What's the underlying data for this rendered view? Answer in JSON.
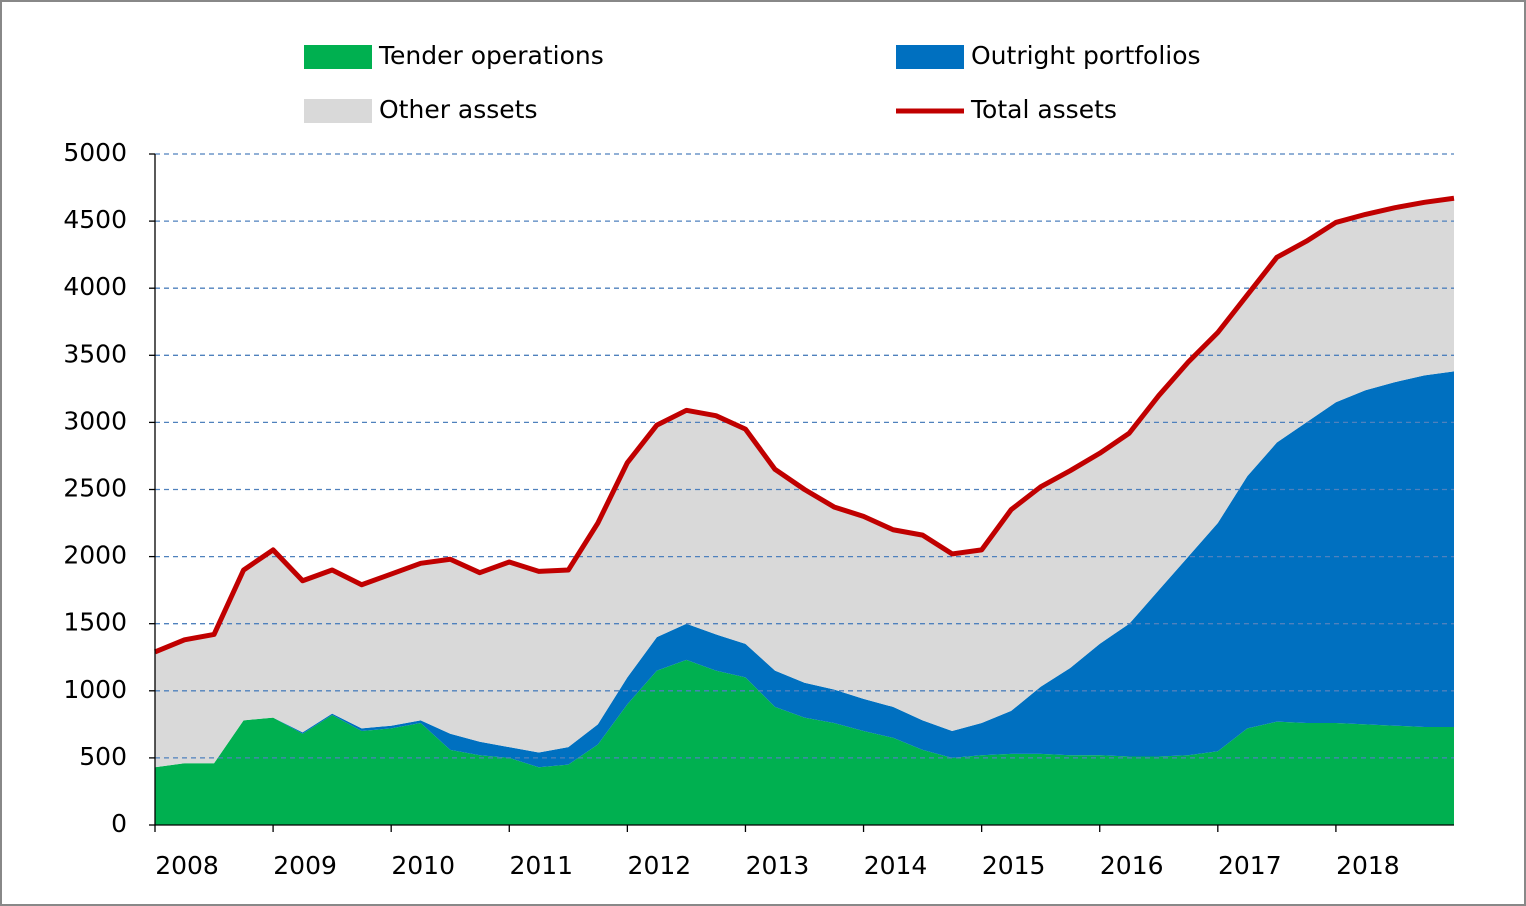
{
  "chart_data": {
    "type": "stacked-area-line",
    "x": [
      2008,
      2008.25,
      2008.5,
      2008.75,
      2009,
      2009.25,
      2009.5,
      2009.75,
      2010,
      2010.25,
      2010.5,
      2010.75,
      2011,
      2011.25,
      2011.5,
      2011.75,
      2012,
      2012.25,
      2012.5,
      2012.75,
      2013,
      2013.25,
      2013.5,
      2013.75,
      2014,
      2014.25,
      2014.5,
      2014.75,
      2015,
      2015.25,
      2015.5,
      2015.75,
      2016,
      2016.25,
      2016.5,
      2016.75,
      2017,
      2017.25,
      2017.5,
      2017.75,
      2018,
      2018.25,
      2018.5,
      2018.75,
      2019
    ],
    "series": [
      {
        "name": "Tender operations",
        "color": "#00b050",
        "stack": true,
        "values": [
          430,
          460,
          460,
          780,
          800,
          680,
          820,
          700,
          720,
          760,
          560,
          520,
          500,
          430,
          450,
          600,
          900,
          1150,
          1230,
          1150,
          1100,
          880,
          800,
          760,
          700,
          650,
          560,
          500,
          520,
          530,
          530,
          520,
          520,
          510,
          510,
          520,
          550,
          720,
          770,
          760,
          760,
          750,
          740,
          730,
          730
        ]
      },
      {
        "name": "Outright portfolios",
        "color": "#0070c0",
        "stack": true,
        "values": [
          0,
          0,
          0,
          0,
          0,
          10,
          10,
          20,
          20,
          20,
          120,
          100,
          80,
          110,
          130,
          150,
          200,
          250,
          270,
          270,
          250,
          270,
          260,
          250,
          240,
          230,
          220,
          200,
          240,
          320,
          500,
          650,
          830,
          990,
          1240,
          1480,
          1700,
          1880,
          2080,
          2240,
          2390,
          2490,
          2560,
          2620,
          2650
        ]
      },
      {
        "name": "Other assets",
        "color": "#d9d9d9",
        "stack": true,
        "values": [
          860,
          920,
          960,
          1120,
          1250,
          1130,
          1070,
          1070,
          1130,
          1170,
          1300,
          1260,
          1380,
          1350,
          1320,
          1500,
          1600,
          1580,
          1590,
          1630,
          1600,
          1500,
          1440,
          1360,
          1360,
          1320,
          1380,
          1320,
          1290,
          1500,
          1490,
          1470,
          1420,
          1420,
          1450,
          1450,
          1420,
          1350,
          1380,
          1350,
          1340,
          1310,
          1300,
          1290,
          1290
        ]
      },
      {
        "name": "Total assets",
        "color": "#c00000",
        "stack": false,
        "values": [
          1290,
          1380,
          1420,
          1900,
          2050,
          1820,
          1900,
          1790,
          1870,
          1950,
          1980,
          1880,
          1960,
          1890,
          1900,
          2250,
          2700,
          2980,
          3090,
          3050,
          2950,
          2650,
          2500,
          2370,
          2300,
          2200,
          2160,
          2020,
          2050,
          2350,
          2520,
          2640,
          2770,
          2920,
          3200,
          3450,
          3670,
          3950,
          4230,
          4350,
          4490,
          4550,
          4600,
          4640,
          4670
        ]
      }
    ],
    "xlim": [
      2008,
      2019
    ],
    "xticks": [
      2008,
      2009,
      2010,
      2011,
      2012,
      2013,
      2014,
      2015,
      2016,
      2017,
      2018
    ],
    "ylim": [
      0,
      5000
    ],
    "yticks": [
      0,
      500,
      1000,
      1500,
      2000,
      2500,
      3000,
      3500,
      4000,
      4500,
      5000
    ],
    "grid": true
  }
}
